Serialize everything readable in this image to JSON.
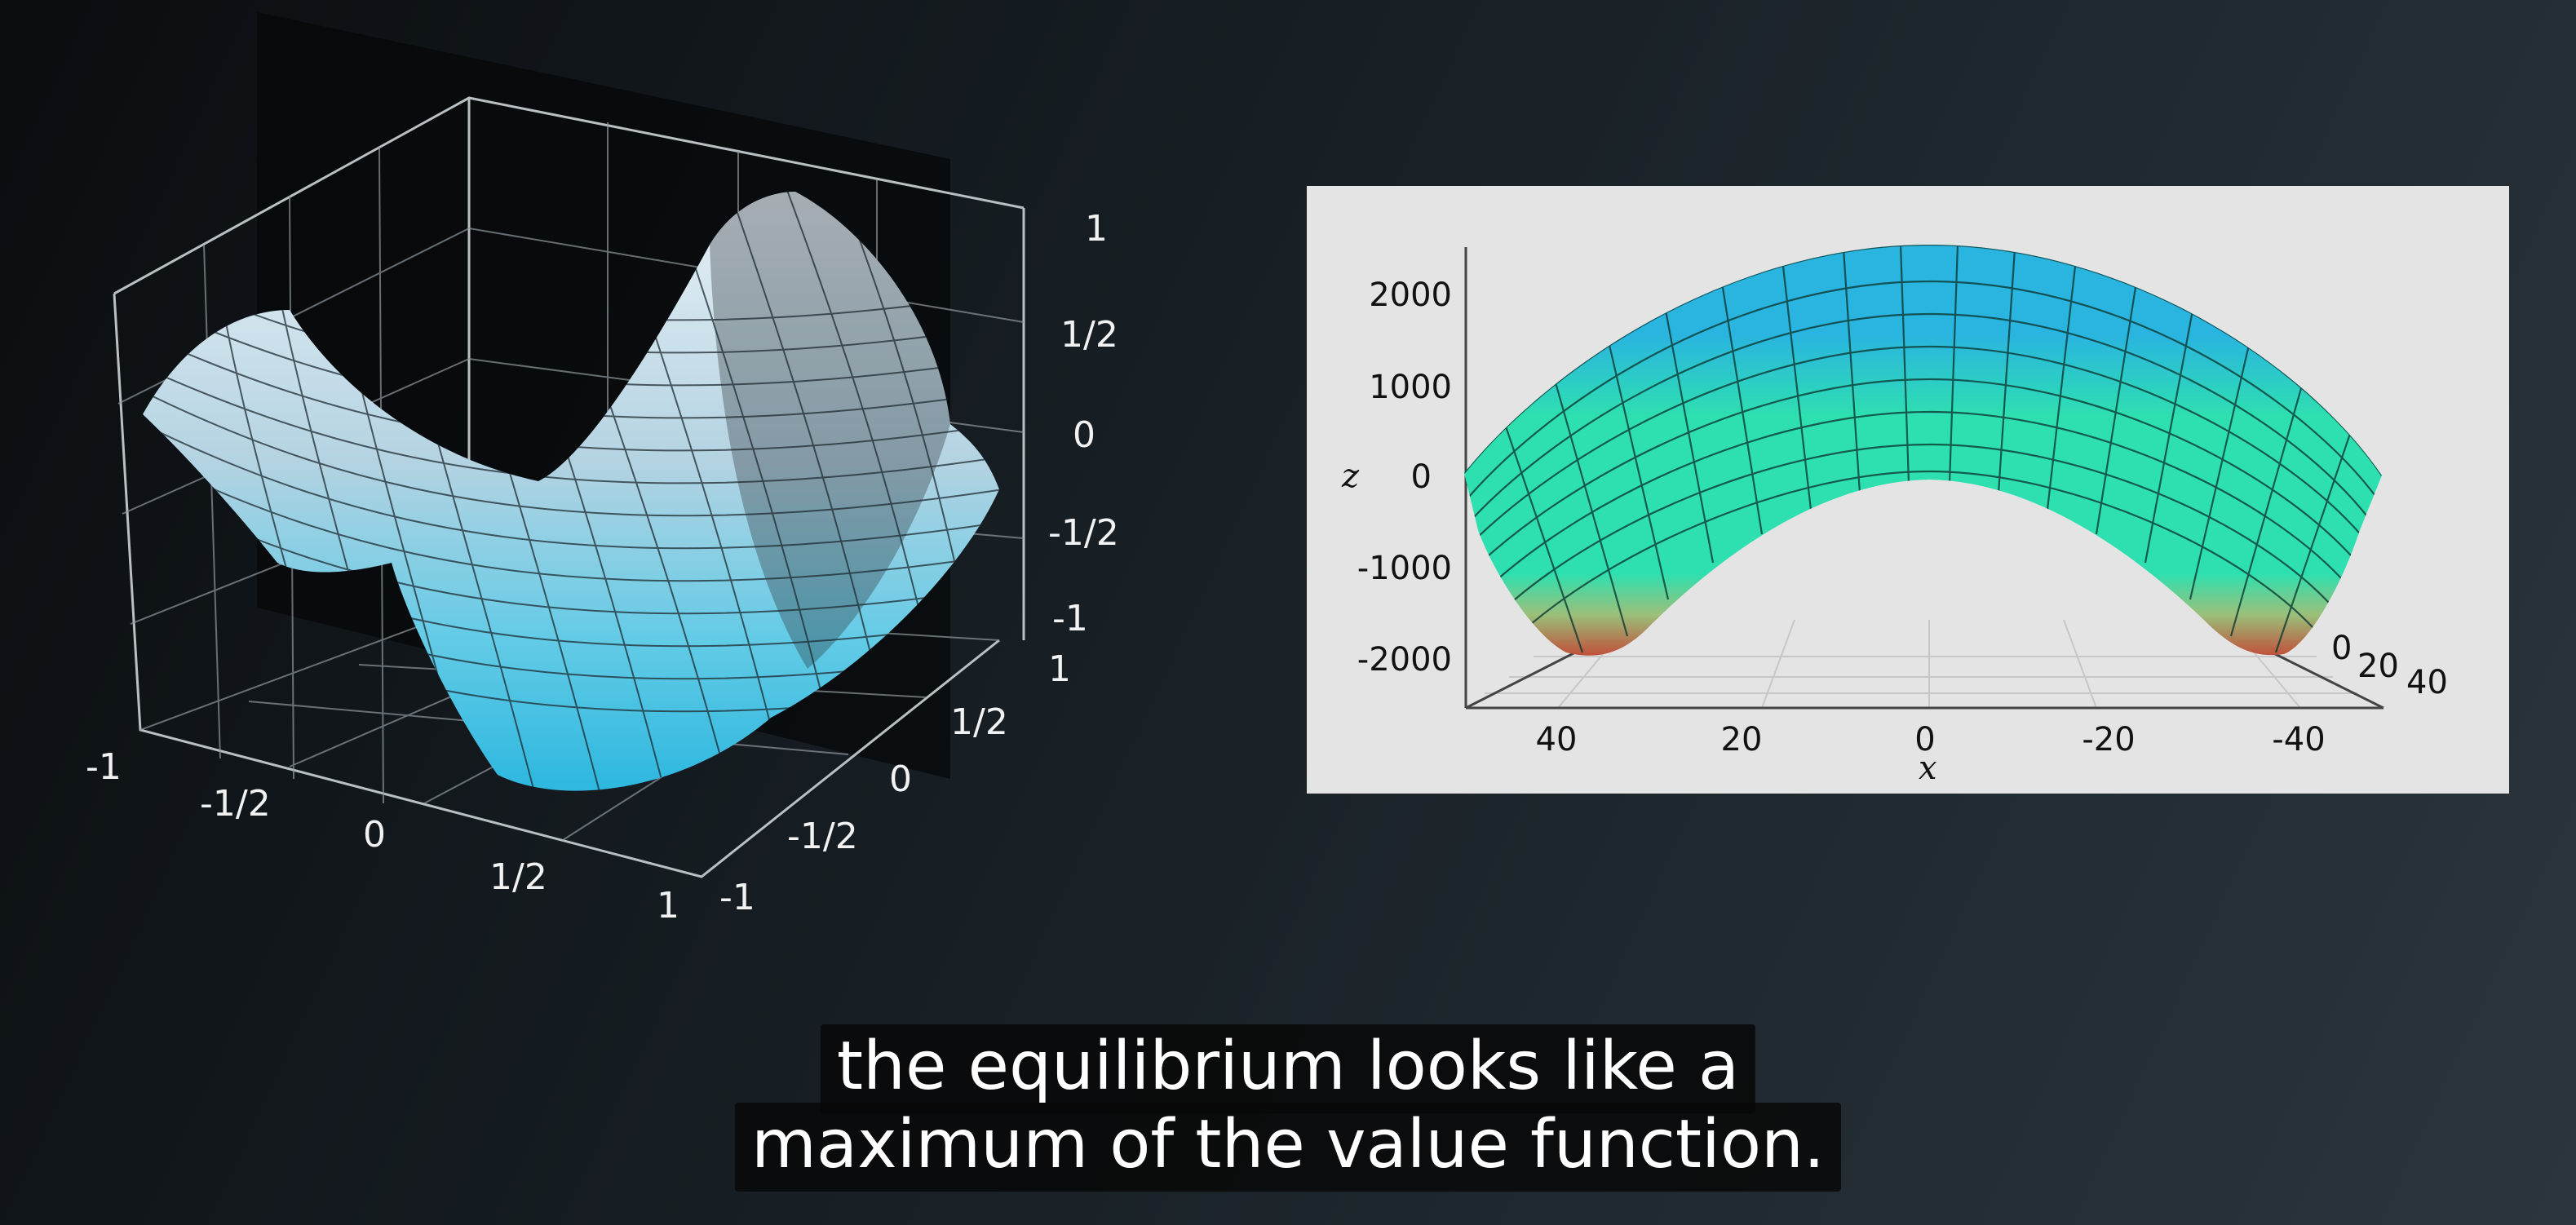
{
  "left_plot": {
    "z_ticks": [
      "1",
      "1/2",
      "0",
      "-1/2",
      "-1"
    ],
    "x_ticks": [
      "-1",
      "-1/2",
      "0",
      "1/2",
      "1"
    ],
    "y_ticks": [
      "-1",
      "-1/2",
      "0",
      "1/2",
      "1"
    ],
    "surface_color": "#5fd0ea",
    "grid_color": "#9aa4aa"
  },
  "right_plot": {
    "z_label": "z",
    "x_label": "x",
    "z_ticks": [
      "2000",
      "1000",
      "0",
      "-1000",
      "-2000"
    ],
    "x_ticks": [
      "40",
      "20",
      "0",
      "-20",
      "-40"
    ],
    "y_ticks": [
      "0",
      "20",
      "40"
    ],
    "background_color": "#e4e4e4",
    "colors": {
      "top": "#2ab4e0",
      "middle": "#2ee0b0",
      "bottom": "#c0503a"
    }
  },
  "captions": {
    "line1": "the equilibrium looks like a",
    "line2": "maximum of the value function."
  }
}
